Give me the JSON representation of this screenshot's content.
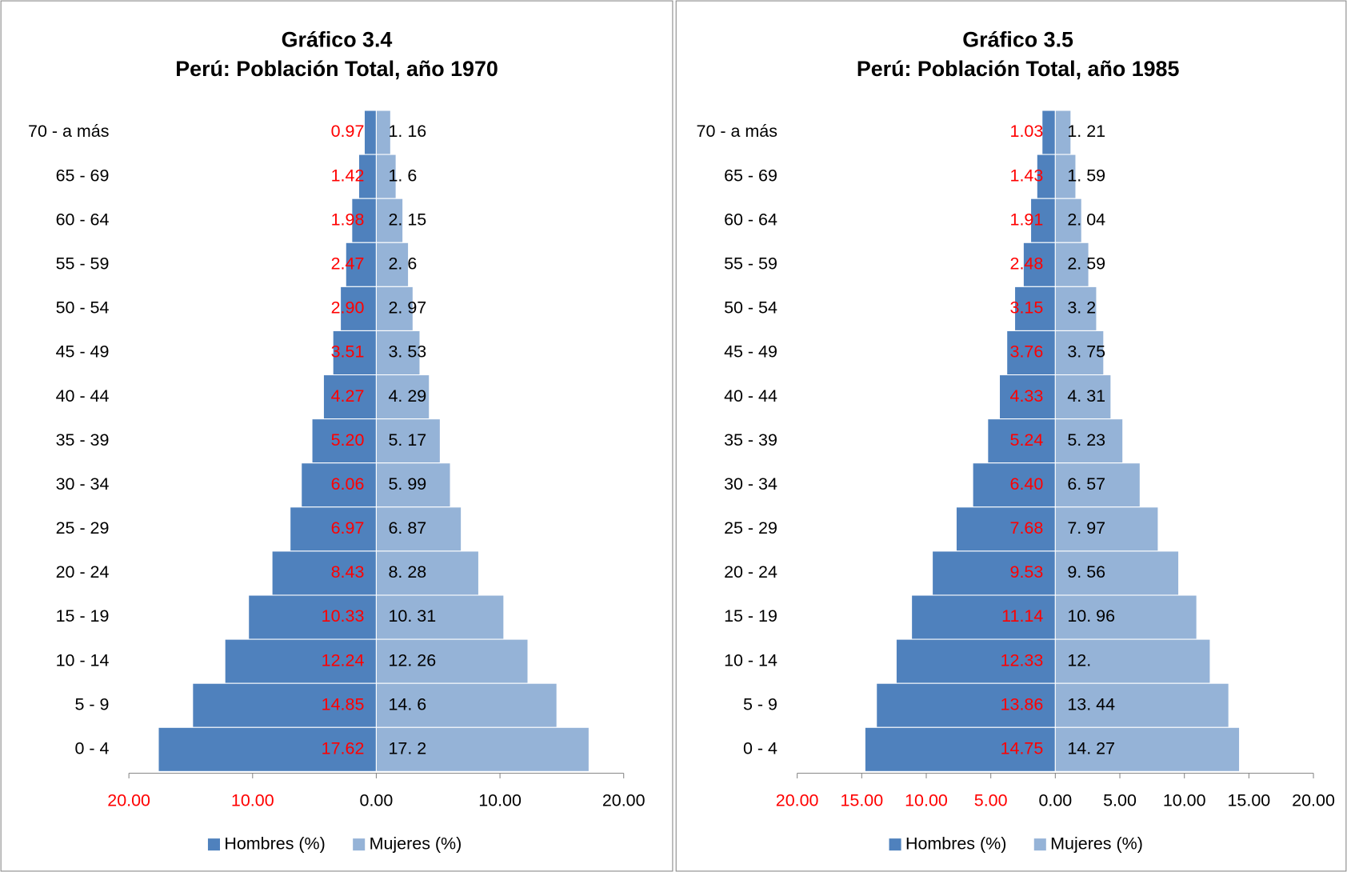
{
  "chart_data": [
    {
      "type": "pyramid",
      "title": "Gráfico 3.4",
      "subtitle": "Perú: Población Total,  año 1970",
      "categories": [
        "70 - a más",
        "65 - 69",
        "60 - 64",
        "55 - 59",
        "50 - 54",
        "45 - 49",
        "40 - 44",
        "35 - 39",
        "30 - 34",
        "25 - 29",
        "20 - 24",
        "15 - 19",
        "10 - 14",
        "5 - 9",
        "0 - 4"
      ],
      "series": [
        {
          "name": "Hombres (%)",
          "color": "#4f81bd",
          "label_color": "#ff0000",
          "side": "left",
          "values": [
            0.97,
            1.42,
            1.98,
            2.47,
            2.9,
            3.51,
            4.27,
            5.2,
            6.06,
            6.97,
            8.43,
            10.33,
            12.24,
            14.85,
            17.62
          ],
          "value_labels": [
            "0.97",
            "1.42",
            "1.98",
            "2.47",
            "2.90",
            "3.51",
            "4.27",
            "5.20",
            "6.06",
            "6.97",
            "8.43",
            "10.33",
            "12.24",
            "14.85",
            "17.62"
          ]
        },
        {
          "name": "Mujeres (%)",
          "color": "#95b3d7",
          "label_color": "#000000",
          "side": "right",
          "values": [
            1.16,
            1.6,
            2.15,
            2.6,
            2.97,
            3.53,
            4.29,
            5.17,
            5.99,
            6.87,
            8.28,
            10.31,
            12.26,
            14.6,
            17.2
          ],
          "value_labels": [
            "1.  16",
            "1.  6",
            "2.  15",
            "2.  6",
            "2.  97",
            "3.  53",
            "4.  29",
            "5.  17",
            "5.  99",
            "6.  87",
            "8.  28",
            "10.  31",
            "12.  26",
            "14.  6",
            "17.  2"
          ]
        }
      ],
      "xlim": [
        -20,
        20
      ],
      "xticks": [
        {
          "value": -20,
          "label": "20.00"
        },
        {
          "value": -10,
          "label": "10.00"
        },
        {
          "value": 0,
          "label": "0.00"
        },
        {
          "value": 10,
          "label": "10.00"
        },
        {
          "value": 20,
          "label": "20.00"
        }
      ],
      "legend": "bottom"
    },
    {
      "type": "pyramid",
      "title": "Gráfico 3.5",
      "subtitle": "Perú: Población Total,  año 1985",
      "categories": [
        "70 - a más",
        "65 - 69",
        "60 - 64",
        "55 - 59",
        "50 - 54",
        "45 - 49",
        "40 - 44",
        "35 - 39",
        "30 - 34",
        "25 - 29",
        "20 - 24",
        "15 - 19",
        "10 - 14",
        "5 - 9",
        "0 - 4"
      ],
      "series": [
        {
          "name": "Hombres (%)",
          "color": "#4f81bd",
          "label_color": "#ff0000",
          "side": "left",
          "values": [
            1.03,
            1.43,
            1.91,
            2.48,
            3.15,
            3.76,
            4.33,
            5.24,
            6.4,
            7.68,
            9.53,
            11.14,
            12.33,
            13.86,
            14.75
          ],
          "value_labels": [
            "1.03",
            "1.43",
            "1.91",
            "2.48",
            "3.15",
            "3.76",
            "4.33",
            "5.24",
            "6.40",
            "7.68",
            "9.53",
            "11.14",
            "12.33",
            "13.86",
            "14.75"
          ]
        },
        {
          "name": "Mujeres (%)",
          "color": "#95b3d7",
          "label_color": "#000000",
          "side": "right",
          "values": [
            1.21,
            1.59,
            2.04,
            2.59,
            3.2,
            3.75,
            4.31,
            5.23,
            6.57,
            7.97,
            9.56,
            10.96,
            12,
            13.44,
            14.27
          ],
          "value_labels": [
            "1.  21",
            "1.  59",
            "2.  04",
            "2.  59",
            "3.  2",
            "3.  75",
            "4.  31",
            "5.  23",
            "6.  57",
            "7.  97",
            "9.  56",
            "10.  96",
            "12.",
            "13.  44",
            "14.  27"
          ]
        }
      ],
      "xlim": [
        -20,
        20
      ],
      "xticks": [
        {
          "value": -20,
          "label": "20.00"
        },
        {
          "value": -15,
          "label": "15.00"
        },
        {
          "value": -10,
          "label": "10.00"
        },
        {
          "value": -5,
          "label": "5.00"
        },
        {
          "value": 0,
          "label": "0.00"
        },
        {
          "value": 5,
          "label": "5.00"
        },
        {
          "value": 10,
          "label": "10.00"
        },
        {
          "value": 15,
          "label": "15.00"
        },
        {
          "value": 20,
          "label": "20.00"
        }
      ],
      "legend": "bottom"
    }
  ]
}
